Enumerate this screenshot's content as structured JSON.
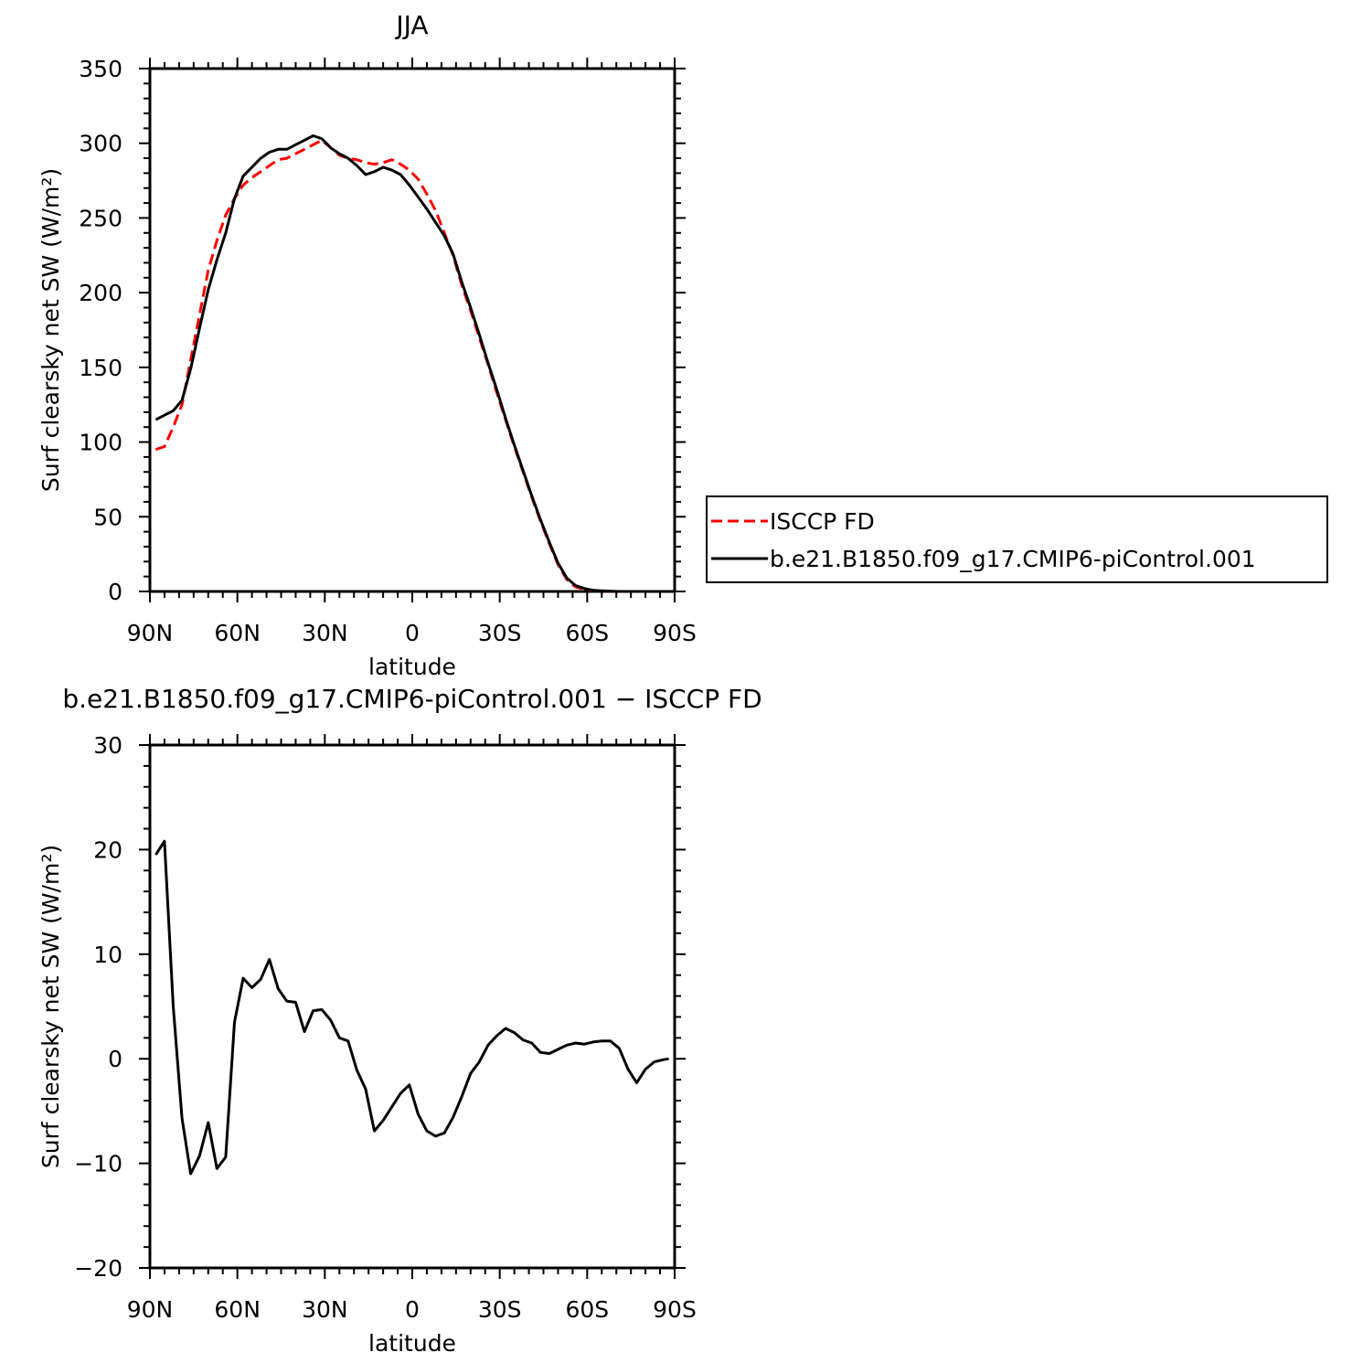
{
  "chart_data": [
    {
      "type": "line",
      "title": "JJA",
      "xlabel": "latitude",
      "ylabel": "Surf clearsky net SW (W/m²)",
      "xlim": [
        90,
        -90
      ],
      "ylim": [
        0,
        350
      ],
      "x_ticks": [
        {
          "v": 90,
          "label": "90N"
        },
        {
          "v": 60,
          "label": "60N"
        },
        {
          "v": 30,
          "label": "30N"
        },
        {
          "v": 0,
          "label": "0"
        },
        {
          "v": -30,
          "label": "30S"
        },
        {
          "v": -60,
          "label": "60S"
        },
        {
          "v": -90,
          "label": "90S"
        }
      ],
      "y_ticks": [
        0,
        50,
        100,
        150,
        200,
        250,
        300,
        350
      ],
      "legend": {
        "placement": "right"
      },
      "series": [
        {
          "name": "ISCCP FD",
          "color": "#ff0000",
          "style": "dashed",
          "x": [
            88,
            85,
            82,
            79,
            76,
            73,
            70,
            67,
            64,
            61,
            58,
            55,
            52,
            49,
            46,
            43,
            40,
            37,
            34,
            31,
            28,
            25,
            22,
            19,
            16,
            13,
            10,
            7,
            4,
            1,
            -2,
            -5,
            -8,
            -11,
            -14,
            -17,
            -20,
            -23,
            -26,
            -29,
            -32,
            -35,
            -38,
            -41,
            -44,
            -47,
            -50,
            -53,
            -56,
            -59,
            -62,
            -65,
            -68,
            -71,
            -74,
            -77,
            -80,
            -83,
            -86,
            -88
          ],
          "y": [
            95,
            97,
            110,
            125,
            155,
            185,
            215,
            235,
            252,
            263,
            272,
            277,
            281,
            285,
            289,
            290,
            293,
            296,
            299,
            302,
            297,
            292,
            290,
            289,
            287,
            286,
            287,
            289,
            286,
            282,
            276,
            266,
            255,
            240,
            225,
            205,
            188,
            170,
            152,
            133,
            115,
            97,
            80,
            63,
            47,
            32,
            18,
            8,
            3,
            1.5,
            0.8,
            0.3,
            0.1,
            0,
            0,
            0,
            0,
            0,
            0,
            0
          ]
        },
        {
          "name": "b.e21.B1850.f09_g17.CMIP6-piControl.001",
          "color": "#000000",
          "style": "solid",
          "x": [
            88,
            85,
            82,
            79,
            76,
            73,
            70,
            67,
            64,
            61,
            58,
            55,
            52,
            49,
            46,
            43,
            40,
            37,
            34,
            31,
            28,
            25,
            22,
            19,
            16,
            13,
            10,
            7,
            4,
            1,
            -2,
            -5,
            -8,
            -11,
            -14,
            -17,
            -20,
            -23,
            -26,
            -29,
            -32,
            -35,
            -38,
            -41,
            -44,
            -47,
            -50,
            -53,
            -56,
            -59,
            -62,
            -65,
            -68,
            -71,
            -74,
            -77,
            -80,
            -83,
            -86,
            -88
          ],
          "y": [
            115,
            118,
            121,
            128,
            149,
            176,
            202,
            222,
            240,
            263,
            278,
            284,
            290,
            294,
            296,
            296,
            299,
            302,
            305,
            303,
            297,
            293,
            290,
            285,
            279,
            281,
            284,
            282,
            279,
            272,
            264,
            256,
            247,
            238,
            226,
            207,
            190,
            172,
            153,
            135,
            116,
            98,
            81,
            64,
            48,
            33,
            19,
            9,
            4,
            2,
            0.8,
            0.4,
            0.1,
            0,
            0,
            0,
            0,
            0,
            0,
            0
          ]
        }
      ]
    },
    {
      "type": "line",
      "title": "b.e21.B1850.f09_g17.CMIP6-piControl.001 − ISCCP FD",
      "xlabel": "latitude",
      "ylabel": "Surf clearsky net SW (W/m²)",
      "xlim": [
        90,
        -90
      ],
      "ylim": [
        -20,
        30
      ],
      "x_ticks": [
        {
          "v": 90,
          "label": "90N"
        },
        {
          "v": 60,
          "label": "60N"
        },
        {
          "v": 30,
          "label": "30N"
        },
        {
          "v": 0,
          "label": "0"
        },
        {
          "v": -30,
          "label": "30S"
        },
        {
          "v": -60,
          "label": "60S"
        },
        {
          "v": -90,
          "label": "90S"
        }
      ],
      "y_ticks": [
        -20,
        -10,
        0,
        10,
        20,
        30
      ],
      "series": [
        {
          "color": "#000000",
          "style": "solid",
          "x": [
            88,
            85,
            82,
            79,
            76,
            73,
            70,
            67,
            64,
            61,
            58,
            55,
            52,
            49,
            46,
            43,
            40,
            37,
            34,
            31,
            28,
            25,
            22,
            19,
            16,
            13,
            10,
            7,
            4,
            1,
            -2,
            -5,
            -8,
            -11,
            -14,
            -17,
            -20,
            -23,
            -26,
            -29,
            -32,
            -35,
            -38,
            -41,
            -44,
            -47,
            -50,
            -53,
            -56,
            -59,
            -62,
            -65,
            -68,
            -71,
            -74,
            -77,
            -80,
            -83,
            -86,
            -88
          ],
          "y": [
            19.5,
            20.8,
            5,
            -5.7,
            -11,
            -9.3,
            -6.1,
            -10.5,
            -9.4,
            3.5,
            7.7,
            6.8,
            7.6,
            9.5,
            6.7,
            5.5,
            5.4,
            2.6,
            4.6,
            4.7,
            3.7,
            2,
            1.7,
            -1.1,
            -2.9,
            -6.9,
            -5.9,
            -4.6,
            -3.3,
            -2.5,
            -5.3,
            -6.9,
            -7.4,
            -7.1,
            -5.6,
            -3.6,
            -1.4,
            -0.3,
            1.3,
            2.2,
            2.9,
            2.5,
            1.8,
            1.5,
            0.6,
            0.5,
            0.9,
            1.3,
            1.5,
            1.4,
            1.6,
            1.7,
            1.7,
            1,
            -1,
            -2.3,
            -1,
            -0.3,
            -0.1,
            0
          ]
        }
      ]
    }
  ]
}
